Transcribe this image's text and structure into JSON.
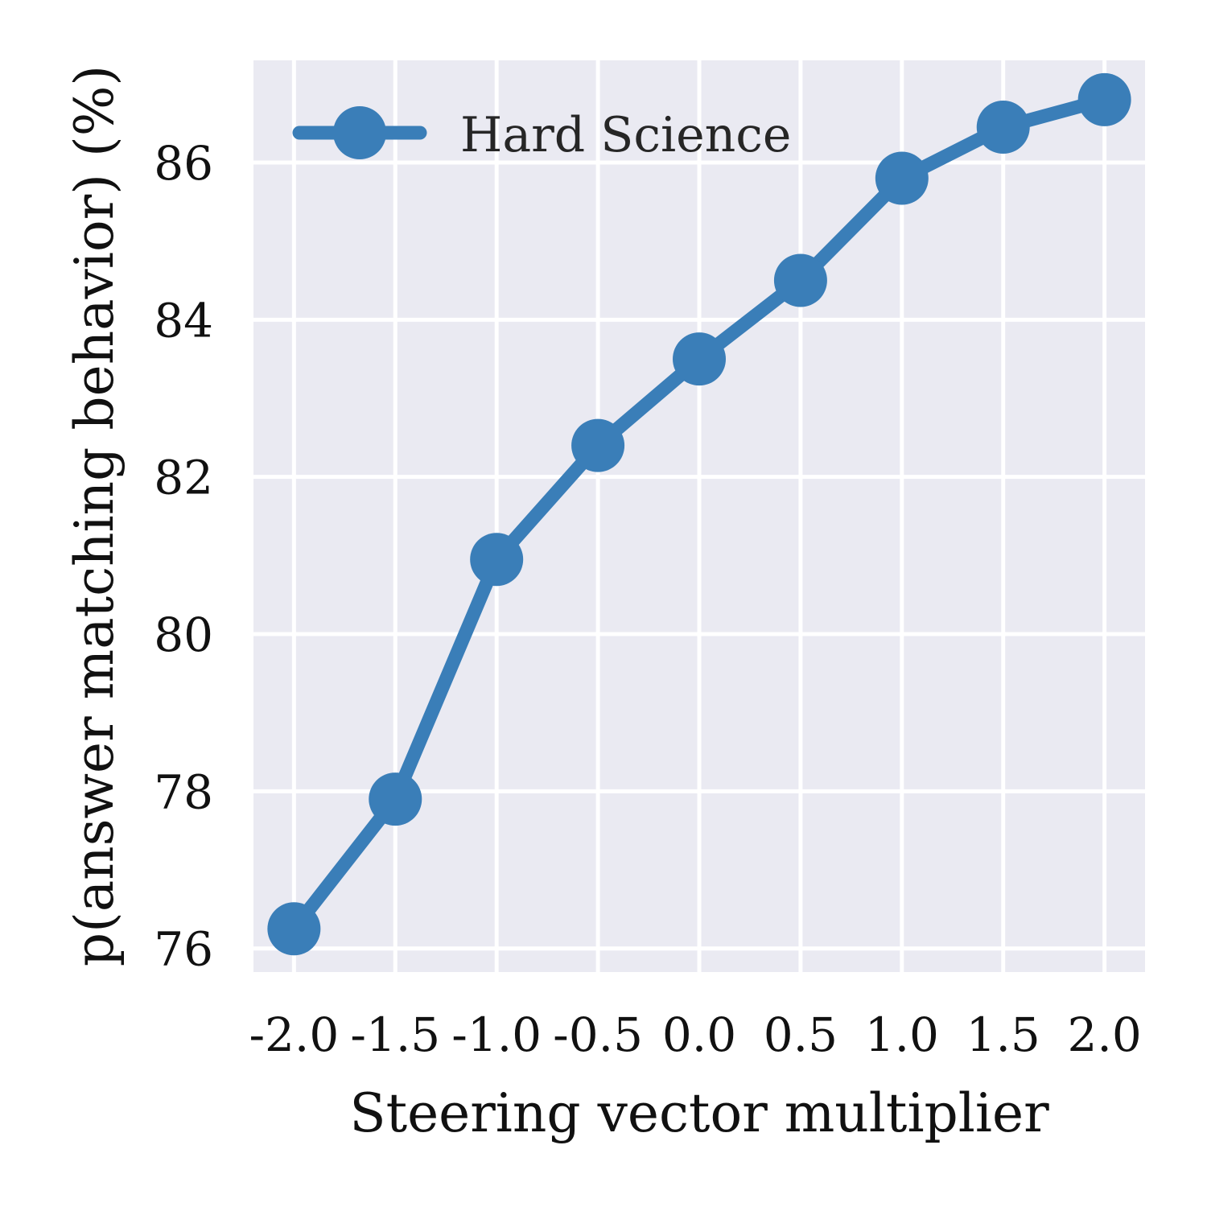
{
  "chart_data": {
    "type": "line",
    "xlabel": "Steering vector multiplier",
    "ylabel": "p(answer matching behavior) (%)",
    "x_ticks": [
      "-2.0",
      "-1.5",
      "-1.0",
      "-0.5",
      "0.0",
      "0.5",
      "1.0",
      "1.5",
      "2.0"
    ],
    "y_ticks": [
      "76",
      "78",
      "80",
      "82",
      "84",
      "86"
    ],
    "x_tick_values": [
      -2.0,
      -1.5,
      -1.0,
      -0.5,
      0.0,
      0.5,
      1.0,
      1.5,
      2.0
    ],
    "y_tick_values": [
      76,
      78,
      80,
      82,
      84,
      86
    ],
    "xlim": [
      -2.2,
      2.2
    ],
    "ylim": [
      75.7,
      87.3
    ],
    "grid": true,
    "legend_position": "top-left",
    "series": [
      {
        "name": "Hard Science",
        "color": "#3a7eb8",
        "marker": "circle",
        "x": [
          -2.0,
          -1.5,
          -1.0,
          -0.5,
          0.0,
          0.5,
          1.0,
          1.5,
          2.0
        ],
        "y": [
          76.25,
          77.9,
          80.95,
          82.4,
          83.5,
          84.5,
          85.8,
          86.45,
          86.8
        ]
      }
    ]
  },
  "colors": {
    "plot_background": "#eaeaf2",
    "grid": "#ffffff"
  }
}
